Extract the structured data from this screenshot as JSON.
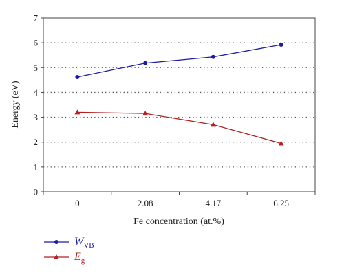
{
  "chart_data": {
    "type": "line",
    "categories": [
      "0",
      "2.08",
      "4.17",
      "6.25"
    ],
    "series": [
      {
        "name": "W_VB",
        "name_main": "W",
        "name_sub": "VB",
        "color": "#1a1aa6",
        "marker": "circle",
        "values": [
          4.62,
          5.18,
          5.43,
          5.92
        ]
      },
      {
        "name": "E_g",
        "name_main": "E",
        "name_sub": "g",
        "color": "#b22222",
        "marker": "triangle",
        "values": [
          3.2,
          3.15,
          2.7,
          1.95
        ]
      }
    ],
    "xlabel": "Fe concentration (at.%)",
    "ylabel": "Energy (eV)",
    "ylim": [
      0,
      7
    ],
    "yticks": [
      "0",
      "1",
      "2",
      "3",
      "4",
      "5",
      "6",
      "7"
    ],
    "grid": "horizontal dotted",
    "legend_position": "bottom-left"
  }
}
